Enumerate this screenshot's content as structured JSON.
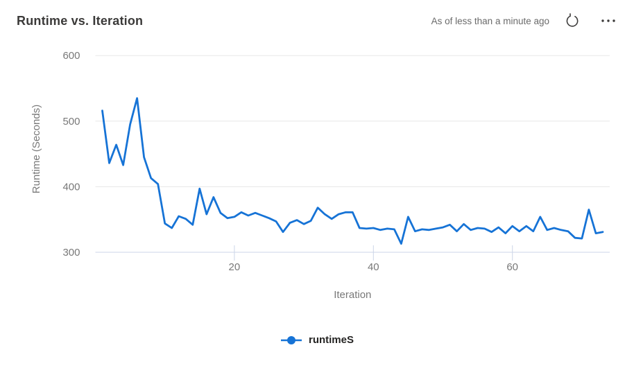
{
  "header": {
    "as_of_text": "As of less than a minute ago",
    "icons": {
      "refresh": "refresh-icon",
      "more_options": "more-options-icon"
    }
  },
  "chart_data": {
    "type": "line",
    "title": "Runtime vs. Iteration",
    "xlabel": "Iteration",
    "ylabel": "Runtime (Seconds)",
    "x_ticks": [
      20,
      40,
      60
    ],
    "y_ticks": [
      300,
      400,
      500,
      600
    ],
    "xlim": [
      0,
      74
    ],
    "ylim": [
      300,
      615
    ],
    "grid": "horizontal-only",
    "legend_position": "bottom-center",
    "colors": {
      "line_blue": "#1673d6",
      "gridline": "#e7e7e7",
      "axis_line": "#ccd5e8",
      "tick_text": "#787878",
      "title_text": "#3b3a39"
    },
    "series": [
      {
        "name": "runtimeS",
        "color": "#1673d6",
        "marker": "circle",
        "x_start": 1,
        "x_step": 1,
        "values": [
          516,
          436,
          464,
          433,
          495,
          535,
          445,
          413,
          404,
          344,
          337,
          355,
          351,
          342,
          397,
          358,
          384,
          360,
          352,
          354,
          361,
          356,
          360,
          356,
          352,
          347,
          331,
          345,
          349,
          343,
          348,
          368,
          358,
          351,
          358,
          361,
          361,
          337,
          336,
          337,
          334,
          336,
          335,
          313,
          354,
          332,
          335,
          334,
          336,
          338,
          342,
          332,
          343,
          334,
          337,
          336,
          331,
          338,
          329,
          340,
          332,
          340,
          332,
          354,
          334,
          337,
          334,
          332,
          322,
          321,
          365,
          329,
          331
        ]
      }
    ]
  }
}
